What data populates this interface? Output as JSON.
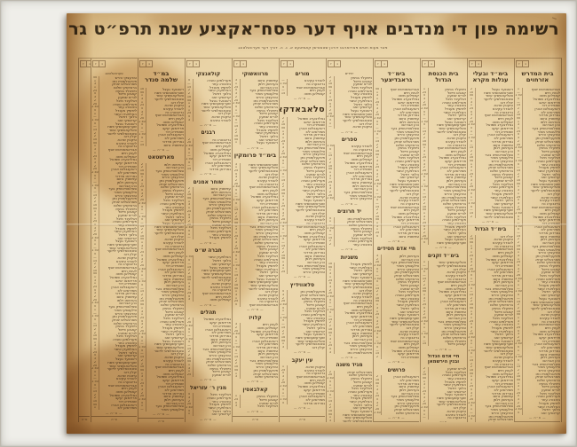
{
  "document_type": "framed printed donor list (scan)",
  "title": {
    "text": "רשימה פון די מנדבים אויף דער פסח־אקציע שנת תרפ״ט גראדנא",
    "year": "1929"
  },
  "subtitle": "פאר מעות חטים פארזארגט דורכן שטאטישן קאמיטעט א. נ. ה. דורך דער פערוואלטונג",
  "units": {
    "zl": "ז",
    "gr": "ג"
  },
  "totals_label": "ס״ה",
  "section_total_divider": "— ס״ה —",
  "colors": {
    "mat": "#efeee9",
    "paper": "#e9d3a6",
    "paper_edge": "#d2ae74",
    "ink": "#46351f",
    "body_ink": "#55422b",
    "rule": "#70522e"
  },
  "name_pool": [
    "אבראמאוויטש יוסף",
    "לעווין חיים",
    "קאפלאן משה",
    "גאלדבערג שמואל",
    "פרידמאן יעקב",
    "שאפירא דוד",
    "ראזענבלום אהרן",
    "מאירסאן ליב",
    "גארדאן מרדכי",
    "עפשטיין נחום",
    "בערמאן זלמן",
    "כהן אברהם",
    "סאלאווייטשיק בער",
    "ווילענסקי מאיר",
    "טורעצקי הירש",
    "פינקעלשטיין נתן",
    "מארגאליס יצחק",
    "בראדסקי שלום",
    "נייפעלד בנימין",
    "קאגאן פייוול",
    "לוריא שמעון",
    "זאלקינד מיכל",
    "פערלמאן טוביה",
    "גינזבורג עוזר",
    "ליפשיץ מענדל",
    "האלפערן איסר",
    "בלאך רפאל",
    "קרינסקי זאב",
    "ראטנער געצל",
    "שערעשעווסקי פסח",
    "וואלקאוויסקי אשר",
    "סוכאוואלסקי לייזער",
    "יעלין דוב",
    "טיקטין שרגא",
    "לאנדוי עקיבא",
    "גרינבערג נח"
  ],
  "amount_pool": [
    "1",
    "2",
    "5",
    "—",
    "10",
    "3",
    "1 50",
    "50",
    "2",
    "5",
    "1",
    "20",
    "—",
    "3",
    "2 40",
    "15",
    "1",
    "5",
    "2",
    "25"
  ],
  "columns": [
    {
      "name": "beis-hamidrash-ezrochim",
      "sections": [
        {
          "header": "בית המדרש\nאזרחוים",
          "size": "lg2",
          "rows": 100
        }
      ]
    },
    {
      "name": "baalei-agoles",
      "sections": [
        {
          "header": "בימ״ד ובעלי\nעגלות מקרא",
          "size": "lg2",
          "rows": 40
        },
        {
          "header": "בימ״ד הגדול",
          "size": "sm",
          "rows": 58
        }
      ]
    },
    {
      "name": "beis-hakneses-hagodol",
      "sections": [
        {
          "header": "בית הכנסת\nהגדול",
          "size": "lg2",
          "rows": 48
        },
        {
          "header": "בימ״ד זקנים",
          "size": "sm",
          "rows": 26
        },
        {
          "header": "חיי אדם הגדול\nובנין הירשמאן",
          "size": "sm2",
          "rows": 16
        }
      ]
    },
    {
      "name": "grabditzer",
      "sections": [
        {
          "header": "בימ״ד\nגראבדיצער",
          "size": "lg2",
          "rows": 46
        },
        {
          "header": "חיי אדם חסידים",
          "size": "sm",
          "rows": 32
        },
        {
          "header": "פרושים",
          "size": "sm",
          "rows": 12
        }
      ]
    },
    {
      "name": "sforim-column",
      "sections": [
        {
          "header": "יחידים",
          "size": "xs",
          "rows": 16
        },
        {
          "header": "ספרים",
          "size": "sm",
          "rows": 17
        },
        {
          "header": "יד חרוצים",
          "size": "sm",
          "rows": 9
        },
        {
          "header": "משניות",
          "size": "sm",
          "rows": 28
        },
        {
          "header": "מגיד משנה",
          "size": "sm",
          "rows": 18
        }
      ]
    },
    {
      "name": "slabodka",
      "sections": [
        {
          "header": "מורים",
          "size": "sm",
          "rows": 5
        },
        {
          "header": "סלאבאדקא",
          "size": "xl",
          "rows": 48
        },
        {
          "header": "סלאווידיץ",
          "size": "sm",
          "rows": 18
        },
        {
          "header": "עין יעקב",
          "size": "sm",
          "rows": 12
        }
      ]
    },
    {
      "name": "frumkin",
      "sections": [
        {
          "header": "מרוואשוקי",
          "size": "sm",
          "rows": 20
        },
        {
          "header": "בימ״ד פרומקין",
          "size": "lg",
          "rows": 44
        },
        {
          "header": "קלויז",
          "size": "sm",
          "rows": 17
        },
        {
          "header": "קאלבאסין",
          "size": "sm",
          "rows": 4
        }
      ]
    },
    {
      "name": "kolantzki",
      "sections": [
        {
          "header": "קולאנצקי",
          "size": "sm",
          "rows": 13
        },
        {
          "header": "רבנים",
          "size": "sm",
          "rows": 10
        },
        {
          "header": "שוחר אמנים",
          "size": "sm",
          "rows": 16
        },
        {
          "header": "חברה ש״ס",
          "size": "sm",
          "rows": 14
        },
        {
          "header": "תהלים",
          "size": "sm",
          "rows": 18
        },
        {
          "header": "מנין ר׳ עזריאל",
          "size": "sm",
          "rows": 7
        }
      ]
    },
    {
      "name": "shloime-sender",
      "sections": [
        {
          "header": "במ״ד\nשלמה סנדר",
          "size": "lg2",
          "rows": 18
        },
        {
          "header": "מארשטאט",
          "size": "sm",
          "rows": 76
        }
      ]
    },
    {
      "name": "fervaltung",
      "sections": [
        {
          "header": "פערוואלטונג",
          "size": "xs",
          "rows": 102
        }
      ]
    },
    {
      "name": "totals-strip",
      "strip": true,
      "sections": []
    }
  ]
}
